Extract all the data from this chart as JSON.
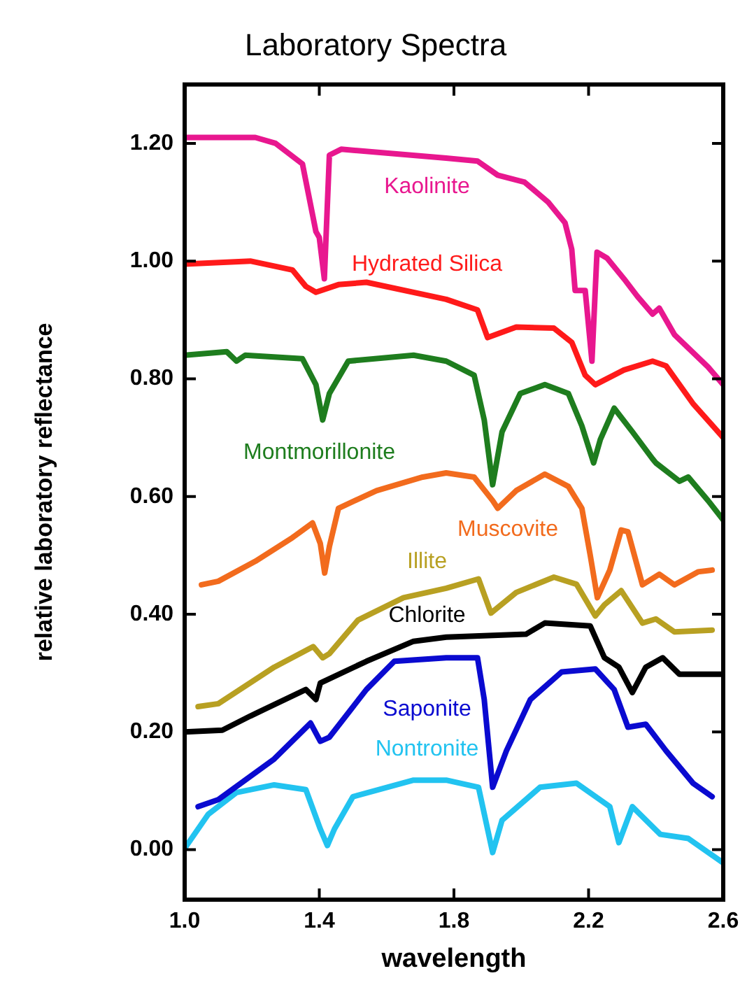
{
  "chart_data": {
    "type": "line",
    "title": "Laboratory Spectra",
    "xlabel": "wavelength",
    "ylabel": "relative laboratory reflectance",
    "xlim": [
      1.0,
      2.6
    ],
    "ylim": [
      -0.085,
      1.3
    ],
    "xticks": [
      {
        "value": 1.0,
        "label": "1.0"
      },
      1.4,
      1.8,
      2.2,
      2.6
    ],
    "yticks": [
      {
        "value": 0,
        "label": "0.00"
      },
      {
        "value": 0.2,
        "label": "0.20"
      },
      {
        "value": 0.4,
        "label": "0.40"
      },
      {
        "value": 0.6,
        "label": "0.60"
      },
      {
        "value": 0.8,
        "label": "0.80"
      },
      {
        "value": 1.0,
        "label": "1.00"
      },
      {
        "value": 1.2,
        "label": "1.20"
      }
    ],
    "grid": false,
    "legend": false,
    "marker": "none",
    "line_style": "solid",
    "series": [
      {
        "name": "Kaolinite",
        "color": "#e8178f",
        "x": [
          1.0,
          1.21,
          1.27,
          1.35,
          1.39,
          1.4,
          1.415,
          1.43,
          1.465,
          1.777,
          1.87,
          1.93,
          2.01,
          2.08,
          2.13,
          2.15,
          2.16,
          2.19,
          2.21,
          2.225,
          2.255,
          2.305,
          2.345,
          2.39,
          2.41,
          2.455,
          2.555,
          2.6
        ],
        "values": [
          1.21,
          1.21,
          1.2,
          1.165,
          1.05,
          1.04,
          0.97,
          1.18,
          1.19,
          1.175,
          1.17,
          1.146,
          1.134,
          1.1,
          1.065,
          1.02,
          0.95,
          0.95,
          0.83,
          1.015,
          1.005,
          0.97,
          0.94,
          0.91,
          0.92,
          0.875,
          0.82,
          0.79
        ]
      },
      {
        "name": "Hydrated Silica",
        "color": "#ff1a1a",
        "x": [
          1.0,
          1.195,
          1.32,
          1.36,
          1.39,
          1.457,
          1.54,
          1.777,
          1.87,
          1.9,
          1.985,
          2.097,
          2.15,
          2.19,
          2.22,
          2.305,
          2.39,
          2.43,
          2.51,
          2.6
        ],
        "values": [
          0.995,
          1.0,
          0.985,
          0.957,
          0.947,
          0.96,
          0.964,
          0.935,
          0.917,
          0.87,
          0.888,
          0.886,
          0.862,
          0.806,
          0.79,
          0.815,
          0.83,
          0.822,
          0.758,
          0.7
        ]
      },
      {
        "name": "Montmorillonite",
        "color": "#1e7d1e",
        "x": [
          1.0,
          1.125,
          1.154,
          1.18,
          1.35,
          1.39,
          1.41,
          1.43,
          1.486,
          1.68,
          1.777,
          1.86,
          1.89,
          1.915,
          1.943,
          1.997,
          2.07,
          2.14,
          2.18,
          2.215,
          2.235,
          2.276,
          2.33,
          2.39,
          2.4,
          2.47,
          2.496,
          2.555,
          2.6
        ],
        "values": [
          0.84,
          0.846,
          0.83,
          0.84,
          0.834,
          0.79,
          0.73,
          0.775,
          0.83,
          0.84,
          0.83,
          0.806,
          0.73,
          0.62,
          0.71,
          0.775,
          0.79,
          0.775,
          0.72,
          0.657,
          0.697,
          0.75,
          0.71,
          0.664,
          0.657,
          0.626,
          0.633,
          0.593,
          0.56
        ]
      },
      {
        "name": "Muscovite",
        "color": "#f26b1d",
        "x": [
          1.05,
          1.1,
          1.21,
          1.32,
          1.38,
          1.403,
          1.416,
          1.43,
          1.457,
          1.57,
          1.707,
          1.777,
          1.86,
          1.915,
          1.93,
          1.985,
          2.07,
          2.14,
          2.18,
          2.205,
          2.226,
          2.263,
          2.297,
          2.317,
          2.36,
          2.41,
          2.455,
          2.525,
          2.567
        ],
        "values": [
          0.45,
          0.456,
          0.49,
          0.53,
          0.555,
          0.52,
          0.47,
          0.515,
          0.58,
          0.61,
          0.633,
          0.64,
          0.633,
          0.593,
          0.58,
          0.61,
          0.638,
          0.617,
          0.58,
          0.5,
          0.428,
          0.475,
          0.543,
          0.54,
          0.45,
          0.468,
          0.45,
          0.472,
          0.475
        ]
      },
      {
        "name": "Illite",
        "color": "#b8a022",
        "x": [
          1.04,
          1.1,
          1.266,
          1.382,
          1.41,
          1.43,
          1.515,
          1.65,
          1.777,
          1.873,
          1.91,
          1.985,
          2.097,
          2.164,
          2.22,
          2.247,
          2.297,
          2.36,
          2.4,
          2.455,
          2.567
        ],
        "values": [
          0.243,
          0.248,
          0.31,
          0.345,
          0.326,
          0.333,
          0.39,
          0.428,
          0.444,
          0.46,
          0.402,
          0.437,
          0.463,
          0.451,
          0.397,
          0.416,
          0.44,
          0.385,
          0.392,
          0.37,
          0.373
        ]
      },
      {
        "name": "Chlorite",
        "color": "#000000",
        "x": [
          1.0,
          1.112,
          1.195,
          1.36,
          1.39,
          1.403,
          1.54,
          1.68,
          1.777,
          2.014,
          2.07,
          2.205,
          2.247,
          2.29,
          2.33,
          2.37,
          2.42,
          2.47,
          2.6
        ],
        "values": [
          0.2,
          0.203,
          0.227,
          0.272,
          0.255,
          0.283,
          0.32,
          0.354,
          0.361,
          0.366,
          0.385,
          0.38,
          0.326,
          0.31,
          0.267,
          0.31,
          0.326,
          0.298,
          0.298
        ]
      },
      {
        "name": "Saponite",
        "color": "#0a0ad0",
        "x": [
          1.04,
          1.1,
          1.266,
          1.374,
          1.403,
          1.43,
          1.54,
          1.623,
          1.777,
          1.87,
          1.89,
          1.915,
          1.956,
          2.027,
          2.12,
          2.22,
          2.276,
          2.317,
          2.37,
          2.43,
          2.51,
          2.567
        ],
        "values": [
          0.073,
          0.085,
          0.154,
          0.215,
          0.184,
          0.191,
          0.272,
          0.32,
          0.326,
          0.326,
          0.255,
          0.106,
          0.168,
          0.255,
          0.302,
          0.307,
          0.272,
          0.208,
          0.213,
          0.168,
          0.113,
          0.09
        ]
      },
      {
        "name": "Nontronite",
        "color": "#22c3f0",
        "x": [
          1.0,
          1.07,
          1.154,
          1.266,
          1.36,
          1.403,
          1.424,
          1.445,
          1.5,
          1.68,
          1.777,
          1.873,
          1.915,
          1.943,
          2.056,
          2.164,
          2.263,
          2.29,
          2.33,
          2.413,
          2.496,
          2.596
        ],
        "values": [
          0.002,
          0.06,
          0.097,
          0.11,
          0.102,
          0.035,
          0.007,
          0.035,
          0.09,
          0.118,
          0.118,
          0.106,
          -0.005,
          0.05,
          0.106,
          0.113,
          0.073,
          0.012,
          0.073,
          0.026,
          0.019,
          -0.021
        ]
      }
    ]
  }
}
